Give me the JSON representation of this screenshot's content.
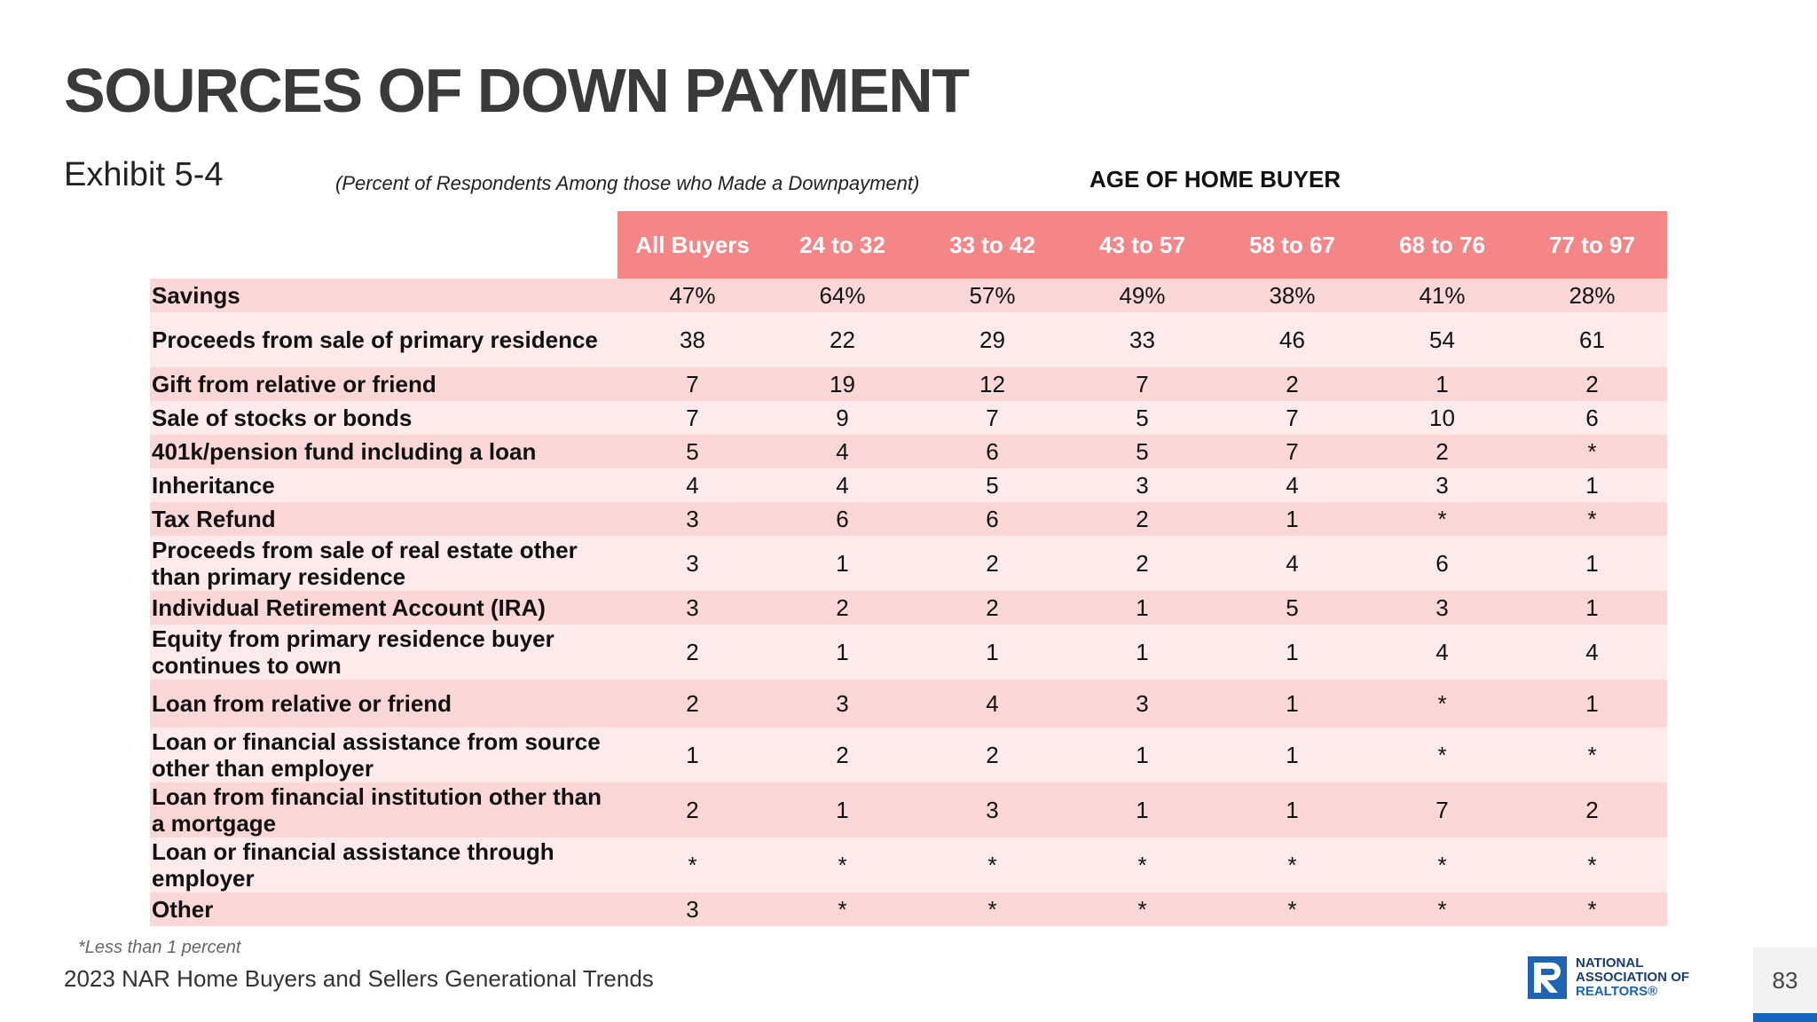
{
  "title": "SOURCES OF DOWN PAYMENT",
  "exhibit": "Exhibit 5-4",
  "subtitle": "(Percent of Respondents Among those who Made a Downpayment)",
  "group_label": "AGE OF HOME BUYER",
  "columns": [
    "All Buyers",
    "24 to 32",
    "33 to 42",
    "43 to 57",
    "58 to 67",
    "68 to 76",
    "77 to 97"
  ],
  "rows": [
    {
      "label": "Savings",
      "values": [
        "47%",
        "64%",
        "57%",
        "49%",
        "38%",
        "41%",
        "28%"
      ]
    },
    {
      "label": "Proceeds from sale of primary residence",
      "values": [
        "38",
        "22",
        "29",
        "33",
        "46",
        "54",
        "61"
      ]
    },
    {
      "label": "Gift from relative or friend",
      "values": [
        "7",
        "19",
        "12",
        "7",
        "2",
        "1",
        "2"
      ]
    },
    {
      "label": "Sale of stocks or bonds",
      "values": [
        "7",
        "9",
        "7",
        "5",
        "7",
        "10",
        "6"
      ]
    },
    {
      "label": "401k/pension fund including a loan",
      "values": [
        "5",
        "4",
        "6",
        "5",
        "7",
        "2",
        "*"
      ]
    },
    {
      "label": "Inheritance",
      "values": [
        "4",
        "4",
        "5",
        "3",
        "4",
        "3",
        "1"
      ]
    },
    {
      "label": "Tax Refund",
      "values": [
        "3",
        "6",
        "6",
        "2",
        "1",
        "*",
        "*"
      ]
    },
    {
      "label": "Proceeds from sale of real estate other than primary residence",
      "values": [
        "3",
        "1",
        "2",
        "2",
        "4",
        "6",
        "1"
      ]
    },
    {
      "label": "Individual Retirement Account (IRA)",
      "values": [
        "3",
        "2",
        "2",
        "1",
        "5",
        "3",
        "1"
      ]
    },
    {
      "label": "Equity from primary residence buyer continues to own",
      "values": [
        "2",
        "1",
        "1",
        "1",
        "1",
        "4",
        "4"
      ]
    },
    {
      "label": "Loan from relative or friend",
      "values": [
        "2",
        "3",
        "4",
        "3",
        "1",
        "*",
        "1"
      ]
    },
    {
      "label": "Loan or financial assistance from source other than employer",
      "values": [
        "1",
        "2",
        "2",
        "1",
        "1",
        "*",
        "*"
      ]
    },
    {
      "label": "Loan from financial institution other than a mortgage",
      "values": [
        "2",
        "1",
        "3",
        "1",
        "1",
        "7",
        "2"
      ]
    },
    {
      "label": "Loan or financial assistance through employer",
      "values": [
        "*",
        "*",
        "*",
        "*",
        "*",
        "*",
        "*"
      ]
    },
    {
      "label": "Other",
      "values": [
        "3",
        "*",
        "*",
        "*",
        "*",
        "*",
        "*"
      ]
    }
  ],
  "footnote": "*Less than 1 percent",
  "source": "2023 NAR Home Buyers and Sellers Generational Trends",
  "logo": {
    "line1": "NATIONAL",
    "line2": "ASSOCIATION OF",
    "line3": "REALTORS®"
  },
  "page_number": "83",
  "colors": {
    "header": "#f58688",
    "row_dark": "#fcd7d8",
    "row_light": "#fdebeb",
    "accent": "#1565c0"
  }
}
